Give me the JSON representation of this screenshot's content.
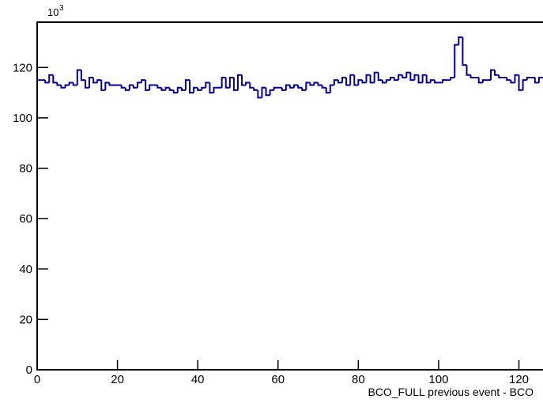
{
  "chart_data": {
    "type": "histogram",
    "xlabel": "BCO_FULL previous event - BCO",
    "y_multiplier_base": "10",
    "y_multiplier_exponent": "3",
    "color": "#000099",
    "bins": [
      0,
      1,
      2,
      3,
      4,
      5,
      6,
      7,
      8,
      9,
      10,
      11,
      12,
      13,
      14,
      15,
      16,
      17,
      18,
      19,
      20,
      21,
      22,
      23,
      24,
      25,
      26,
      27,
      28,
      29,
      30,
      31,
      32,
      33,
      34,
      35,
      36,
      37,
      38,
      39,
      40,
      41,
      42,
      43,
      44,
      45,
      46,
      47,
      48,
      49,
      50,
      51,
      52,
      53,
      54,
      55,
      56,
      57,
      58,
      59,
      60,
      61,
      62,
      63,
      64,
      65,
      66,
      67,
      68,
      69,
      70,
      71,
      72,
      73,
      74,
      75,
      76,
      77,
      78,
      79,
      80,
      81,
      82,
      83,
      84,
      85,
      86,
      87,
      88,
      89,
      90,
      91,
      92,
      93,
      94,
      95,
      96,
      97,
      98,
      99,
      100,
      101,
      102,
      103,
      104,
      105,
      106,
      107,
      108,
      109,
      110,
      111,
      112,
      113,
      114,
      115,
      116,
      117,
      118,
      119,
      120,
      121,
      122,
      123,
      124,
      125,
      126
    ],
    "values": [
      115,
      115,
      114,
      117,
      114,
      113,
      112,
      113,
      114,
      113,
      119,
      115,
      112,
      116,
      114,
      115,
      111,
      114,
      113,
      113,
      113,
      112,
      111,
      113,
      112,
      114,
      115,
      111,
      113,
      113,
      112,
      111,
      112,
      111,
      110,
      112,
      111,
      115,
      110,
      112,
      111,
      112,
      114,
      110,
      112,
      112,
      116,
      112,
      116,
      111,
      117,
      113,
      114,
      112,
      111,
      108,
      112,
      109,
      111,
      112,
      112,
      111,
      113,
      112,
      113,
      112,
      111,
      114,
      113,
      114,
      113,
      112,
      110,
      113,
      115,
      114,
      116,
      113,
      117,
      113,
      115,
      114,
      117,
      114,
      118,
      115,
      114,
      115,
      116,
      115,
      117,
      116,
      118,
      115,
      117,
      114,
      117,
      114,
      115,
      114,
      114,
      115,
      115,
      116,
      129,
      132,
      121,
      117,
      116,
      116,
      114,
      115,
      115,
      119,
      117,
      116,
      116,
      115,
      114,
      117,
      111,
      115,
      116,
      116,
      114,
      116
    ],
    "xlim": [
      0,
      126
    ],
    "ylim": [
      0,
      138
    ],
    "xticks": [
      0,
      20,
      40,
      60,
      80,
      100,
      120
    ],
    "yticks": [
      0,
      20,
      40,
      60,
      80,
      100,
      120
    ]
  }
}
